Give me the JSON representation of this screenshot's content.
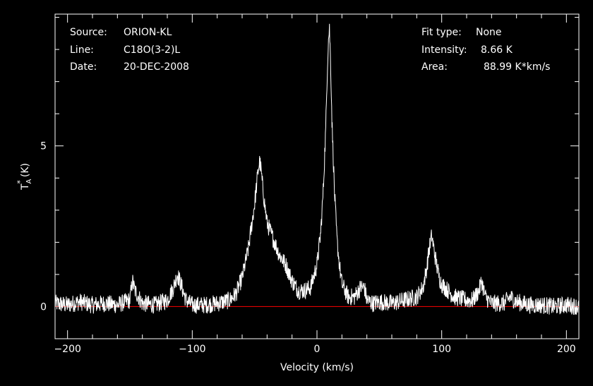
{
  "header_left": [
    {
      "label": "Source:",
      "value": "ORION-KL"
    },
    {
      "label": "Line:",
      "value": "C18O(3-2)L"
    },
    {
      "label": "Date:",
      "value": "20-DEC-2008"
    }
  ],
  "header_right": [
    {
      "label": "Fit type:",
      "value": "None"
    },
    {
      "label": "Intensity:",
      "value": "8.66 K"
    },
    {
      "label": "Area:",
      "value": "88.99 K*km/s"
    }
  ],
  "colors": {
    "background": "#000000",
    "foreground": "#ffffff",
    "baseline": "#e00000"
  },
  "chart_data": {
    "type": "line",
    "xlabel": "Velocity (km/s)",
    "ylabel": "T_A^* (K)",
    "xlim": [
      -210,
      210
    ],
    "ylim": [
      -1,
      9.1
    ],
    "x_ticks": [
      -200,
      -100,
      0,
      100,
      200
    ],
    "y_ticks": [
      0,
      5
    ],
    "grid": false,
    "baseline_y": 0,
    "series": [
      {
        "x": [
          -210,
          -200,
          -190,
          -180,
          -170,
          -160,
          -150,
          -148,
          -146,
          -140,
          -130,
          -120,
          -115,
          -112,
          -110,
          -105,
          -100,
          -90,
          -80,
          -70,
          -65,
          -60,
          -55,
          -50,
          -47,
          -46,
          -45,
          -44,
          -42,
          -40,
          -35,
          -30,
          -25,
          -20,
          -15,
          -10,
          -5,
          0,
          3,
          5,
          7,
          8,
          9,
          10,
          11,
          12,
          14,
          16,
          18,
          20,
          25,
          30,
          35,
          38,
          40,
          45,
          50,
          60,
          70,
          80,
          85,
          88,
          90,
          92,
          95,
          98,
          100,
          110,
          120,
          125,
          130,
          132,
          135,
          140,
          150,
          155,
          160,
          170,
          180,
          190,
          200,
          210
        ],
        "y": [
          0.1,
          0.05,
          0.15,
          0.05,
          0.1,
          0.05,
          0.2,
          0.8,
          0.5,
          0.1,
          0.05,
          0.2,
          0.6,
          1.0,
          0.8,
          0.2,
          0.05,
          0.05,
          0.1,
          0.2,
          0.4,
          0.9,
          1.8,
          3.2,
          4.3,
          4.5,
          4.3,
          3.9,
          3.2,
          2.6,
          2.1,
          1.6,
          1.3,
          0.8,
          0.5,
          0.5,
          0.6,
          1.3,
          2.3,
          3.6,
          5.5,
          7.0,
          8.2,
          8.66,
          7.5,
          5.8,
          3.6,
          2.1,
          1.3,
          0.7,
          0.3,
          0.3,
          0.6,
          0.6,
          0.2,
          0.1,
          0.15,
          0.1,
          0.2,
          0.3,
          0.6,
          1.2,
          1.8,
          2.2,
          1.5,
          0.9,
          0.7,
          0.3,
          0.2,
          0.2,
          0.5,
          0.8,
          0.3,
          0.1,
          0.1,
          0.3,
          0.15,
          0.05,
          0.05,
          0.0,
          0.05,
          0.0
        ]
      }
    ]
  }
}
